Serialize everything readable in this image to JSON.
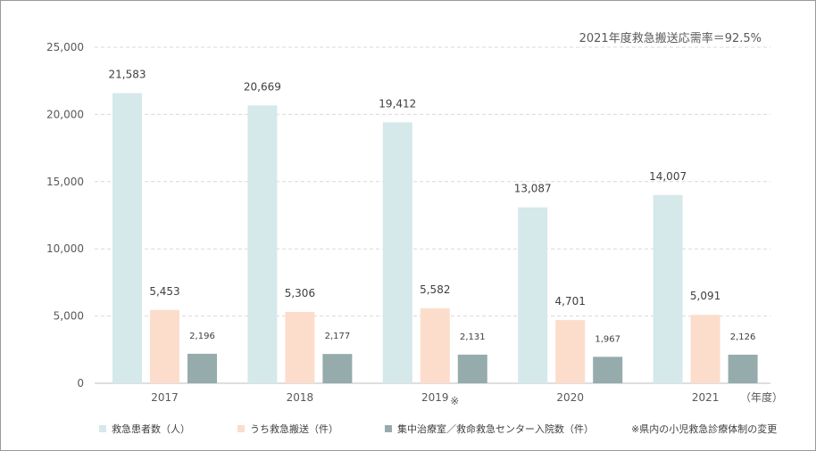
{
  "chart_data": {
    "type": "bar",
    "title": "",
    "annotation": "2021年度救急搬送応需率＝92.5%",
    "categories": [
      "2017",
      "2018",
      "2019",
      "2020",
      "2021"
    ],
    "category_marks": [
      "",
      "",
      "※",
      "",
      ""
    ],
    "x_unit_label": "（年度）",
    "xlabel": "",
    "ylabel": "",
    "ylim": [
      0,
      25000
    ],
    "yticks": [
      "0",
      "5,000",
      "10,000",
      "15,000",
      "20,000",
      "25,000"
    ],
    "ytick_values": [
      0,
      5000,
      10000,
      15000,
      20000,
      25000
    ],
    "grid": true,
    "legend_position": "bottom",
    "series": [
      {
        "name": "救急患者数（人）",
        "color": "#d5e8ea",
        "values": [
          21583,
          20669,
          19412,
          13087,
          14007
        ],
        "labels": [
          "21,583",
          "20,669",
          "19,412",
          "13,087",
          "14,007"
        ]
      },
      {
        "name": "うち救急搬送（件）",
        "color": "#fcddcc",
        "values": [
          5453,
          5306,
          5582,
          4701,
          5091
        ],
        "labels": [
          "5,453",
          "5,306",
          "5,582",
          "4,701",
          "5,091"
        ]
      },
      {
        "name": "集中治療室／救命救急センター入院数（件）",
        "color": "#96abab",
        "values": [
          2196,
          2177,
          2131,
          1967,
          2126
        ],
        "labels": [
          "2,196",
          "2,177",
          "2,131",
          "1,967",
          "2,126"
        ]
      }
    ],
    "footnote": "※県内の小児救急診療体制の変更"
  }
}
